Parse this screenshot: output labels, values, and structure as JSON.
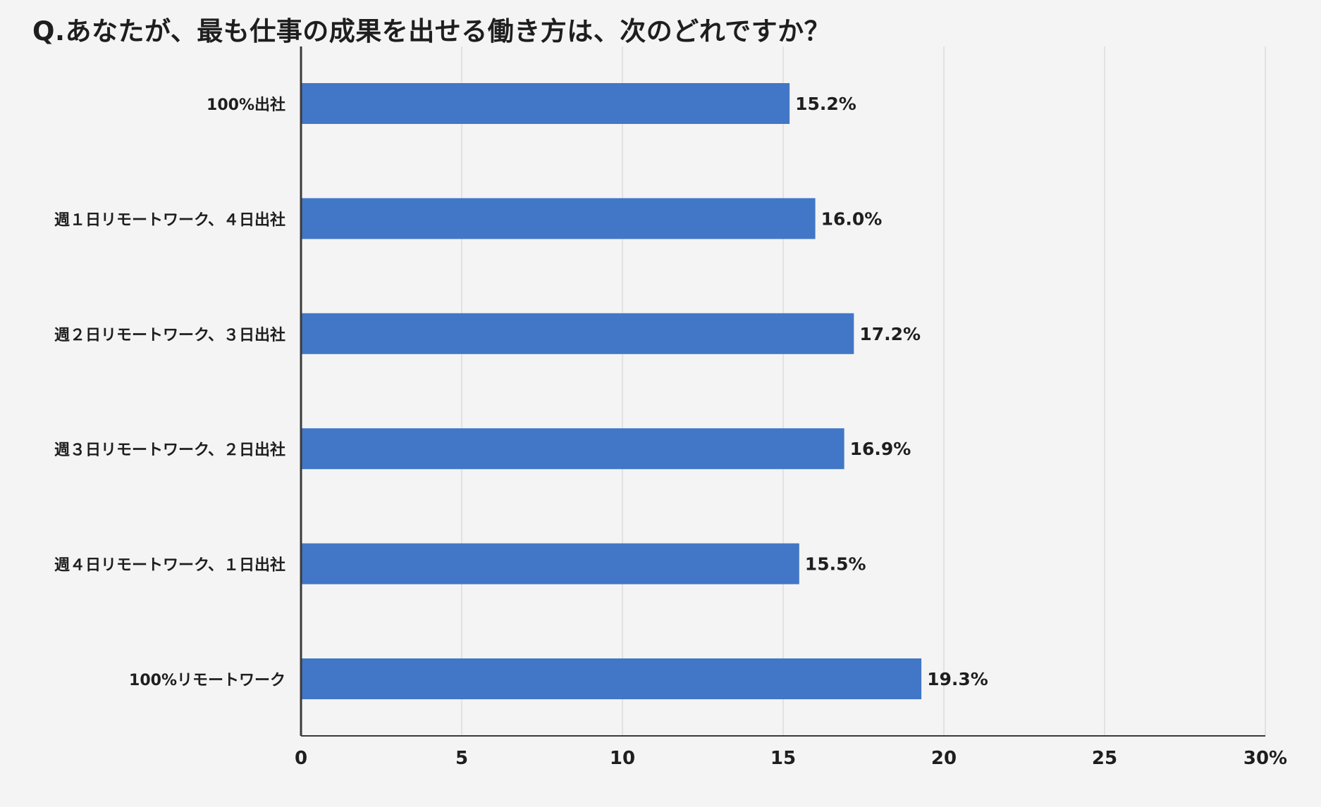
{
  "chart_data": {
    "type": "bar",
    "orientation": "horizontal",
    "title": "Q.あなたが、最も仕事の成果を出せる働き方は、次のどれですか？",
    "categories": [
      "100%出社",
      "週１日リモートワーク、４日出社",
      "週２日リモートワーク、３日出社",
      "週３日リモートワーク、２日出社",
      "週４日リモートワーク、１日出社",
      "100%リモートワーク"
    ],
    "values": [
      15.2,
      16.0,
      17.2,
      16.9,
      15.5,
      19.3
    ],
    "data_labels": [
      "15.2%",
      "16.0%",
      "17.2%",
      "16.9%",
      "15.5%",
      "19.3%"
    ],
    "x_ticks": [
      0,
      5,
      10,
      15,
      20,
      25,
      30
    ],
    "x_tick_labels": [
      "0",
      "5",
      "10",
      "15",
      "20",
      "25",
      "30%"
    ],
    "xlim": [
      0,
      30
    ],
    "xlabel": "",
    "ylabel": "",
    "grid": true,
    "legend": "none",
    "colors": {
      "bar": "#4177c6",
      "grid": "#dcdcdc",
      "axis": "#3a3a3a",
      "background": "#f4f4f4"
    }
  }
}
